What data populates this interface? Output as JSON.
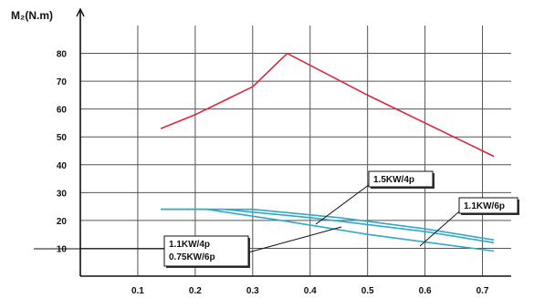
{
  "chart_data": {
    "type": "line",
    "ylabel": "M₂(N.m)",
    "xlabel": "",
    "title": "",
    "xlim": [
      0.0,
      0.75
    ],
    "ylim": [
      0,
      90
    ],
    "x_ticks": [
      "0.1",
      "0.2",
      "0.3",
      "0.4",
      "0.5",
      "0.6",
      "0.7"
    ],
    "y_ticks": [
      "10",
      "20",
      "30",
      "40",
      "50",
      "60",
      "70",
      "80"
    ],
    "grid": true,
    "colors": {
      "red": "#d8283a",
      "blue": "#2fa9c6",
      "grid": "#555555",
      "axis": "#111111"
    },
    "series": [
      {
        "color": "red",
        "points": [
          [
            0.14,
            53
          ],
          [
            0.2,
            58
          ],
          [
            0.3,
            68
          ],
          [
            0.36,
            80
          ],
          [
            0.5,
            65
          ],
          [
            0.72,
            43
          ]
        ]
      },
      {
        "color": "blue",
        "points": [
          [
            0.14,
            24
          ],
          [
            0.25,
            24
          ],
          [
            0.4,
            21
          ],
          [
            0.6,
            16
          ],
          [
            0.72,
            12
          ]
        ]
      },
      {
        "color": "blue",
        "points": [
          [
            0.14,
            24
          ],
          [
            0.3,
            24
          ],
          [
            0.45,
            21
          ],
          [
            0.6,
            17
          ],
          [
            0.72,
            13
          ]
        ]
      },
      {
        "color": "blue",
        "points": [
          [
            0.14,
            24
          ],
          [
            0.22,
            24
          ],
          [
            0.35,
            20
          ],
          [
            0.5,
            15
          ],
          [
            0.72,
            9
          ]
        ]
      }
    ],
    "annotations": [
      {
        "lines": [
          "1.5KW/4p"
        ]
      },
      {
        "lines": [
          "1.1KW/6p"
        ]
      },
      {
        "lines": [
          "1.1KW/4p",
          "0.75KW/6p"
        ]
      }
    ]
  }
}
